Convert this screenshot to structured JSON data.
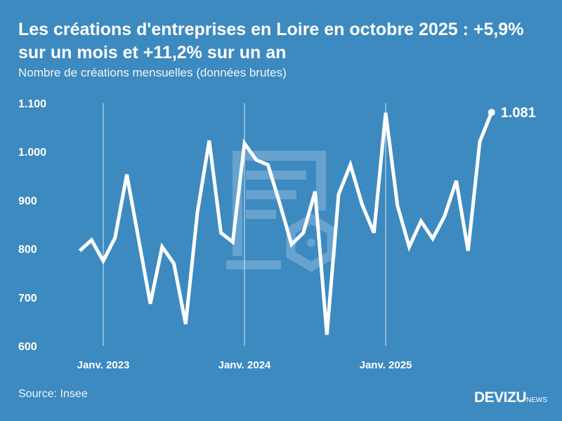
{
  "header": {
    "title": "Les créations d'entreprises en Loire en octobre 2025 : +5,9% sur un mois et +11,2% sur un an",
    "subtitle": "Nombre de créations mensuelles (données brutes)"
  },
  "footer": {
    "source": "Source: Insee",
    "logo_main": "DEVIZU",
    "logo_suffix": "NEWS"
  },
  "colors": {
    "background": "#3d8ac0",
    "line": "#ffffff"
  },
  "chart_data": {
    "type": "line",
    "title": "Les créations d'entreprises en Loire en octobre 2025 : +5,9% sur un mois et +11,2% sur un an",
    "subtitle": "Nombre de créations mensuelles (données brutes)",
    "ylim": [
      600,
      1100
    ],
    "yticks": [
      600,
      700,
      800,
      900,
      1000,
      1100
    ],
    "ytick_labels": [
      "600",
      "700",
      "800",
      "900",
      "1.000",
      "1.100"
    ],
    "xticks": [
      {
        "month": "2023-01",
        "label": "Janv. 2023"
      },
      {
        "month": "2024-01",
        "label": "Janv. 2024"
      },
      {
        "month": "2025-01",
        "label": "Janv. 2025"
      }
    ],
    "x": [
      "2022-11",
      "2022-12",
      "2023-01",
      "2023-02",
      "2023-03",
      "2023-04",
      "2023-05",
      "2023-06",
      "2023-07",
      "2023-08",
      "2023-09",
      "2023-10",
      "2023-11",
      "2023-12",
      "2024-01",
      "2024-02",
      "2024-03",
      "2024-04",
      "2024-05",
      "2024-06",
      "2024-07",
      "2024-08",
      "2024-09",
      "2024-10",
      "2024-11",
      "2024-12",
      "2025-01",
      "2025-02",
      "2025-03",
      "2025-04",
      "2025-05",
      "2025-06",
      "2025-07",
      "2025-08",
      "2025-09",
      "2025-10"
    ],
    "values": [
      796,
      818,
      775,
      823,
      953,
      820,
      687,
      804,
      770,
      645,
      875,
      1023,
      833,
      814,
      1017,
      983,
      973,
      893,
      809,
      833,
      918,
      623,
      912,
      973,
      891,
      833,
      1080,
      889,
      804,
      857,
      821,
      867,
      940,
      796,
      1021,
      1081
    ],
    "last_label": "1.081",
    "grid": "vertical lines at January ticks",
    "legend": "none"
  }
}
